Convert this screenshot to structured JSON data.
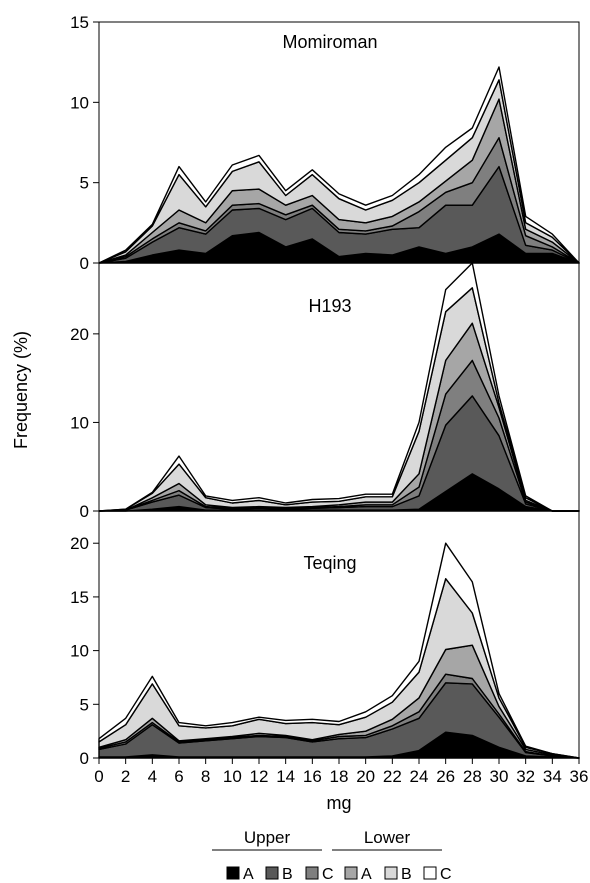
{
  "chart_data": [
    {
      "type": "area",
      "stacked": true,
      "title": "Momiroman",
      "x": [
        0,
        2,
        4,
        6,
        8,
        10,
        12,
        14,
        16,
        18,
        20,
        22,
        24,
        26,
        28,
        30,
        32,
        34,
        36
      ],
      "ylim": [
        0,
        15
      ],
      "yticks": [
        0,
        5,
        10,
        15
      ],
      "series": [
        {
          "name": "A",
          "group": "Upper",
          "values": [
            0,
            0.1,
            0.5,
            0.8,
            0.6,
            1.7,
            1.9,
            1.0,
            1.5,
            0.4,
            0.6,
            0.5,
            1.0,
            0.6,
            1.0,
            1.8,
            0.6,
            0.6,
            0
          ]
        },
        {
          "name": "B",
          "group": "Upper",
          "values": [
            0,
            0.2,
            0.8,
            1.4,
            1.2,
            1.6,
            1.5,
            1.7,
            1.9,
            1.5,
            1.2,
            1.6,
            1.2,
            3.0,
            2.6,
            4.2,
            0.5,
            0.2,
            0
          ]
        },
        {
          "name": "C",
          "group": "Upper",
          "values": [
            0,
            0.1,
            0.2,
            0.3,
            0.2,
            0.3,
            0.3,
            0.3,
            0.2,
            0.2,
            0.2,
            0.2,
            1.0,
            0.8,
            1.4,
            1.8,
            0.6,
            0.2,
            0
          ]
        },
        {
          "name": "A",
          "group": "Lower",
          "values": [
            0,
            0.1,
            0.4,
            0.8,
            0.5,
            0.9,
            0.9,
            0.6,
            0.6,
            0.6,
            0.5,
            0.6,
            0.6,
            0.7,
            1.4,
            2.4,
            0.4,
            0.3,
            0
          ]
        },
        {
          "name": "B",
          "group": "Lower",
          "values": [
            0,
            0.2,
            0.4,
            2.2,
            1.0,
            1.2,
            1.7,
            0.6,
            1.3,
            1.3,
            0.8,
            1.0,
            1.2,
            1.3,
            1.4,
            1.2,
            0.4,
            0.3,
            0
          ]
        },
        {
          "name": "C",
          "group": "Lower",
          "values": [
            0,
            0.1,
            0.1,
            0.5,
            0.3,
            0.4,
            0.4,
            0.3,
            0.3,
            0.3,
            0.3,
            0.3,
            0.5,
            0.8,
            0.6,
            0.8,
            0.4,
            0.2,
            0
          ]
        }
      ]
    },
    {
      "type": "area",
      "stacked": true,
      "title": "H193",
      "x": [
        0,
        2,
        4,
        6,
        8,
        10,
        12,
        14,
        16,
        18,
        20,
        22,
        24,
        26,
        28,
        30,
        32,
        34,
        36
      ],
      "ylim": [
        0,
        28
      ],
      "yticks": [
        0,
        10,
        20
      ],
      "series": [
        {
          "name": "A",
          "group": "Upper",
          "values": [
            0,
            0,
            0.2,
            0.5,
            0.1,
            0.1,
            0.1,
            0.1,
            0.1,
            0.1,
            0.1,
            0.1,
            0.2,
            2.2,
            4.2,
            2.5,
            0.5,
            0,
            0
          ]
        },
        {
          "name": "B",
          "group": "Upper",
          "values": [
            0,
            0.1,
            0.8,
            1.3,
            0.3,
            0.1,
            0.2,
            0.1,
            0.2,
            0.3,
            0.4,
            0.4,
            1.5,
            7.5,
            8.8,
            6.0,
            0.3,
            0,
            0
          ]
        },
        {
          "name": "C",
          "group": "Upper",
          "values": [
            0,
            0,
            0.2,
            0.5,
            0.1,
            0.1,
            0.1,
            0.1,
            0.1,
            0.1,
            0.2,
            0.2,
            1.0,
            3.5,
            4.0,
            2.0,
            0.2,
            0,
            0
          ]
        },
        {
          "name": "A",
          "group": "Lower",
          "values": [
            0,
            0,
            0.3,
            0.8,
            0.2,
            0.1,
            0.1,
            0.1,
            0.1,
            0.2,
            0.3,
            0.3,
            1.5,
            3.8,
            4.2,
            1.2,
            0.2,
            0,
            0
          ]
        },
        {
          "name": "B",
          "group": "Lower",
          "values": [
            0,
            0.1,
            0.5,
            2.2,
            0.8,
            0.5,
            0.7,
            0.3,
            0.5,
            0.4,
            0.6,
            0.6,
            4.8,
            5.5,
            4.0,
            0.5,
            0.3,
            0,
            0
          ]
        },
        {
          "name": "C",
          "group": "Lower",
          "values": [
            0,
            0,
            0.1,
            0.9,
            0.2,
            0.3,
            0.3,
            0.2,
            0.3,
            0.3,
            0.3,
            0.3,
            1.0,
            2.5,
            2.8,
            0.8,
            0.2,
            0,
            0
          ]
        }
      ]
    },
    {
      "type": "area",
      "stacked": true,
      "title": "Teqing",
      "x": [
        0,
        2,
        4,
        6,
        8,
        10,
        12,
        14,
        16,
        18,
        20,
        22,
        24,
        26,
        28,
        30,
        32,
        34,
        36
      ],
      "ylim": [
        0,
        23
      ],
      "yticks": [
        0,
        5,
        10,
        15,
        20
      ],
      "series": [
        {
          "name": "A",
          "group": "Upper",
          "values": [
            0.1,
            0.1,
            0.3,
            0.1,
            0.1,
            0.1,
            0.1,
            0.1,
            0.1,
            0.1,
            0.1,
            0.2,
            0.7,
            2.4,
            2.1,
            1.0,
            0.2,
            0.1,
            0
          ]
        },
        {
          "name": "B",
          "group": "Upper",
          "values": [
            0.7,
            1.2,
            2.8,
            1.3,
            1.5,
            1.7,
            1.9,
            1.8,
            1.4,
            1.7,
            1.8,
            2.5,
            3.0,
            4.6,
            4.8,
            2.8,
            0.3,
            0.1,
            0
          ]
        },
        {
          "name": "C",
          "group": "Upper",
          "values": [
            0.1,
            0.2,
            0.2,
            0.1,
            0.1,
            0.1,
            0.1,
            0.1,
            0.1,
            0.2,
            0.2,
            0.3,
            0.6,
            0.8,
            0.5,
            0.3,
            0.1,
            0,
            0
          ]
        },
        {
          "name": "A",
          "group": "Lower",
          "values": [
            0.1,
            0.2,
            0.4,
            0.1,
            0.1,
            0.1,
            0.2,
            0.1,
            0.1,
            0.2,
            0.4,
            0.6,
            1.3,
            2.3,
            3.1,
            0.7,
            0.2,
            0.1,
            0
          ]
        },
        {
          "name": "B",
          "group": "Lower",
          "values": [
            0.5,
            1.4,
            3.2,
            1.4,
            1.0,
            1.0,
            1.3,
            1.1,
            1.6,
            0.9,
            1.3,
            1.6,
            2.4,
            6.6,
            3.0,
            0.8,
            0.2,
            0.1,
            0
          ]
        },
        {
          "name": "C",
          "group": "Lower",
          "values": [
            0.3,
            0.6,
            0.7,
            0.3,
            0.2,
            0.3,
            0.2,
            0.3,
            0.3,
            0.3,
            0.5,
            0.6,
            1.0,
            3.3,
            2.9,
            0.4,
            0.1,
            0,
            0
          ]
        }
      ]
    }
  ],
  "axes": {
    "xlabel": "mg",
    "ylabel": "Frequency (%)",
    "xticks": [
      0,
      2,
      4,
      6,
      8,
      10,
      12,
      14,
      16,
      18,
      20,
      22,
      24,
      26,
      28,
      30,
      32,
      34,
      36
    ]
  },
  "legend": {
    "groups": [
      "Upper",
      "Lower"
    ],
    "items": [
      {
        "label": "A",
        "group": "Upper",
        "color": "#000000"
      },
      {
        "label": "B",
        "group": "Upper",
        "color": "#595959"
      },
      {
        "label": "C",
        "group": "Upper",
        "color": "#7f7f7f"
      },
      {
        "label": "A",
        "group": "Lower",
        "color": "#a6a6a6"
      },
      {
        "label": "B",
        "group": "Lower",
        "color": "#d9d9d9"
      },
      {
        "label": "C",
        "group": "Lower",
        "color": "#ffffff"
      }
    ]
  }
}
